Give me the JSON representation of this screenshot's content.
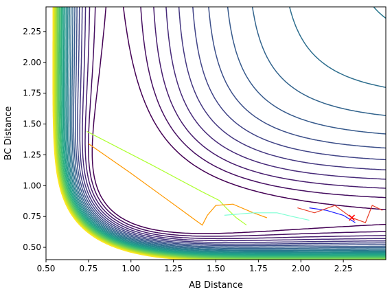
{
  "chart_data": {
    "type": "contour",
    "title": "",
    "xlabel": "AB Distance",
    "ylabel": "BC Distance",
    "xlim": [
      0.5,
      2.5
    ],
    "ylim": [
      0.4,
      2.45
    ],
    "xticks": [
      0.5,
      0.75,
      1.0,
      1.25,
      1.5,
      1.75,
      2.0,
      2.25
    ],
    "xtick_labels": [
      "0.50",
      "0.75",
      "1.00",
      "1.25",
      "1.50",
      "1.75",
      "2.00",
      "2.25"
    ],
    "yticks": [
      0.5,
      0.75,
      1.0,
      1.25,
      1.5,
      1.75,
      2.0,
      2.25
    ],
    "ytick_labels": [
      "0.50",
      "0.75",
      "1.00",
      "1.25",
      "1.50",
      "1.75",
      "2.00",
      "2.25"
    ],
    "grid": false,
    "legend": false,
    "contour_levels": {
      "count": 26,
      "colormap": [
        "#440154",
        "#482475",
        "#414487",
        "#355f8d",
        "#2a788e",
        "#21918c",
        "#22a884",
        "#44bf70",
        "#7ad151",
        "#bddf26",
        "#fde725"
      ]
    },
    "trajectories": [
      {
        "color": "#adff2f",
        "points": [
          [
            0.74,
            1.44
          ],
          [
            1.12,
            1.17
          ],
          [
            1.42,
            0.95
          ],
          [
            1.52,
            0.88
          ],
          [
            1.56,
            0.82
          ],
          [
            1.62,
            0.74
          ],
          [
            1.68,
            0.68
          ]
        ]
      },
      {
        "color": "#ff9900",
        "points": [
          [
            0.75,
            1.34
          ],
          [
            1.0,
            1.1
          ],
          [
            1.2,
            0.9
          ],
          [
            1.38,
            0.72
          ],
          [
            1.42,
            0.68
          ],
          [
            1.45,
            0.76
          ],
          [
            1.5,
            0.84
          ],
          [
            1.6,
            0.85
          ],
          [
            1.72,
            0.78
          ],
          [
            1.8,
            0.74
          ]
        ]
      },
      {
        "color": "#7fffd4",
        "points": [
          [
            1.55,
            0.76
          ],
          [
            1.72,
            0.78
          ],
          [
            1.86,
            0.78
          ],
          [
            1.95,
            0.75
          ],
          [
            2.05,
            0.72
          ]
        ]
      },
      {
        "color": "#1e1eff",
        "points": [
          [
            2.05,
            0.82
          ],
          [
            2.15,
            0.8
          ],
          [
            2.25,
            0.76
          ],
          [
            2.32,
            0.7
          ]
        ]
      },
      {
        "color": "#e8402a",
        "points": [
          [
            1.98,
            0.82
          ],
          [
            2.08,
            0.78
          ],
          [
            2.2,
            0.84
          ],
          [
            2.3,
            0.74
          ],
          [
            2.38,
            0.7
          ],
          [
            2.42,
            0.84
          ],
          [
            2.48,
            0.8
          ]
        ]
      }
    ],
    "marker": {
      "symbol": "x",
      "color": "#ff0000",
      "x": 2.3,
      "y": 0.74
    }
  }
}
